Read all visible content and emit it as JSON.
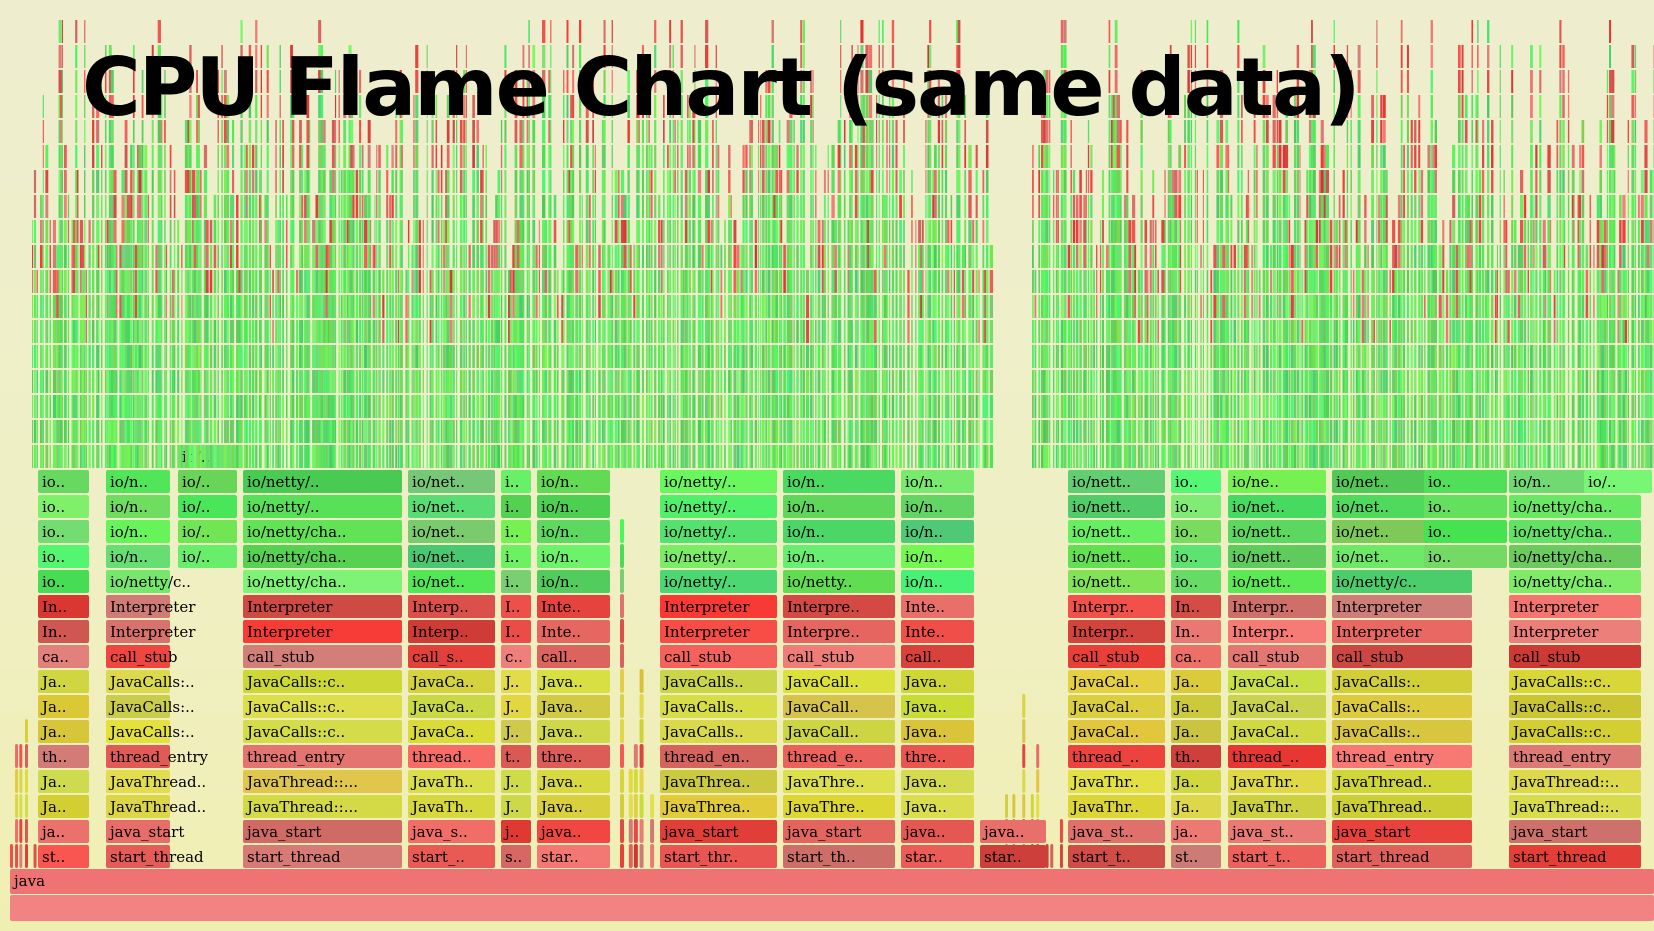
{
  "chart_data": {
    "type": "flame",
    "title": "CPU Flame Chart (same data)",
    "root": "java",
    "row_labels_full": {
      "java_start": "java_start",
      "start_thread": "start_thread",
      "thread_entry": "thread_entry",
      "call_stub": "call_stub",
      "Interpreter": "Interpreter"
    },
    "columns": [
      {
        "levels": [
          "st..",
          "ja..",
          "Ja..",
          "Ja..",
          "th..",
          "Ja..",
          "Ja..",
          "Ja..",
          "ca..",
          "In..",
          "In..",
          "io..",
          "io..",
          "io..",
          "io..",
          "io.."
        ],
        "color": "red"
      },
      {
        "levels": [
          "start_thread",
          "java_start",
          "JavaThread..",
          "JavaThread..",
          "thread_entry",
          "JavaCalls:..",
          "JavaCalls:..",
          "JavaCalls:..",
          "call_stub",
          "Interpreter",
          "Interpreter",
          "io/netty/c..",
          "io/n..",
          "io/n..",
          "io/n..",
          "io/n.."
        ],
        "color": "red"
      },
      {
        "levels": [
          "",
          "",
          "",
          "",
          "",
          "",
          "",
          "",
          "",
          "",
          "",
          "",
          "io/..",
          "io/..",
          "io/..",
          "io/..",
          "io/.."
        ],
        "color": "green"
      },
      {
        "levels": [
          "start_thread",
          "java_start",
          "JavaThread::...",
          "JavaThread::...",
          "thread_entry",
          "JavaCalls::c..",
          "JavaCalls::c..",
          "JavaCalls::c..",
          "call_stub",
          "Interpreter",
          "Interpreter",
          "io/netty/cha..",
          "io/netty/cha..",
          "io/netty/cha..",
          "io/netty/..",
          "io/netty/.."
        ],
        "color": "red"
      },
      {
        "levels": [
          "start_..",
          "java_s..",
          "JavaTh..",
          "JavaTh..",
          "thread..",
          "JavaCa..",
          "JavaCa..",
          "JavaCa..",
          "call_s..",
          "Interp..",
          "Interp..",
          "io/net..",
          "io/net..",
          "io/net..",
          "io/net..",
          "io/net.."
        ],
        "color": "red"
      },
      {
        "levels": [
          "s..",
          "j..",
          "J..",
          "J..",
          "t..",
          "J..",
          "J..",
          "J..",
          "c..",
          "I..",
          "I..",
          "i..",
          "i..",
          "i..",
          "i..",
          "i.."
        ],
        "color": "red"
      },
      {
        "levels": [
          "star..",
          "java..",
          "Java..",
          "Java..",
          "thre..",
          "Java..",
          "Java..",
          "Java..",
          "call..",
          "Inte..",
          "Inte..",
          "io/n..",
          "io/n..",
          "io/n..",
          "io/n..",
          "io/n.."
        ],
        "color": "red"
      },
      {
        "levels": [
          "start_thr..",
          "java_start",
          "JavaThrea..",
          "JavaThrea..",
          "thread_en..",
          "JavaCalls..",
          "JavaCalls..",
          "JavaCalls..",
          "call_stub",
          "Interpreter",
          "Interpreter",
          "io/netty/..",
          "io/netty/..",
          "io/netty/..",
          "io/netty/..",
          "io/netty/.."
        ],
        "color": "red"
      },
      {
        "levels": [
          "start_th..",
          "java_start",
          "JavaThre..",
          "JavaThre..",
          "thread_e..",
          "JavaCall..",
          "JavaCall..",
          "JavaCall..",
          "call_stub",
          "Interpre..",
          "Interpre..",
          "io/netty..",
          "io/n..",
          "io/n..",
          "io/n..",
          "io/n.."
        ],
        "color": "red"
      },
      {
        "levels": [
          "star..",
          "java..",
          "Java..",
          "Java..",
          "thre..",
          "Java..",
          "Java..",
          "Java..",
          "call..",
          "Inte..",
          "Inte..",
          "io/n..",
          "io/n..",
          "io/n..",
          "io/n..",
          "io/n.."
        ],
        "color": "red"
      },
      {
        "levels": [
          "star..",
          "java.."
        ],
        "color": "red"
      },
      {
        "levels": [
          "start_t..",
          "java_st..",
          "JavaThr..",
          "JavaThr..",
          "thread_..",
          "JavaCal..",
          "JavaCal..",
          "JavaCal..",
          "call_stub",
          "Interpr..",
          "Interpr..",
          "io/nett..",
          "io/nett..",
          "io/nett..",
          "io/nett..",
          "io/nett.."
        ],
        "color": "red"
      },
      {
        "levels": [
          "st..",
          "ja..",
          "Ja..",
          "Ja..",
          "th..",
          "Ja..",
          "Ja..",
          "Ja..",
          "ca..",
          "In..",
          "In..",
          "io..",
          "io..",
          "io..",
          "io..",
          "io.."
        ],
        "color": "red"
      },
      {
        "levels": [
          "start_t..",
          "java_st..",
          "JavaThr..",
          "JavaThr..",
          "thread_..",
          "JavaCal..",
          "JavaCal..",
          "JavaCal..",
          "call_stub",
          "Interpr..",
          "Interpr..",
          "io/nett..",
          "io/nett..",
          "io/nett..",
          "io/net..",
          "io/ne.."
        ],
        "color": "red"
      },
      {
        "levels": [
          "start_thread",
          "java_start",
          "JavaThread..",
          "JavaThread..",
          "thread_entry",
          "JavaCalls:..",
          "JavaCalls:..",
          "JavaCalls:..",
          "call_stub",
          "Interpreter",
          "Interpreter",
          "io/netty/c..",
          "io/net..",
          "io/net..",
          "io/net..",
          "io/net.."
        ],
        "color": "red"
      },
      {
        "levels": [
          "",
          "",
          "",
          "",
          "",
          "",
          "",
          "",
          "",
          "",
          "",
          "",
          "io..",
          "io..",
          "io..",
          "io.."
        ],
        "color": "green"
      },
      {
        "levels": [
          "start_thread",
          "java_start",
          "JavaThread::..",
          "JavaThread::..",
          "thread_entry",
          "JavaCalls::c..",
          "JavaCalls::c..",
          "JavaCalls::c..",
          "call_stub",
          "Interpreter",
          "Interpreter",
          "io/netty/cha..",
          "io/netty/cha..",
          "io/netty/cha..",
          "io/netty/cha..",
          "io/n.."
        ],
        "color": "red"
      },
      {
        "levels": [
          "",
          "",
          "",
          "",
          "",
          "",
          "",
          "",
          "",
          "",
          "",
          "",
          "",
          "",
          "",
          "io/.."
        ],
        "color": "green"
      }
    ]
  }
}
